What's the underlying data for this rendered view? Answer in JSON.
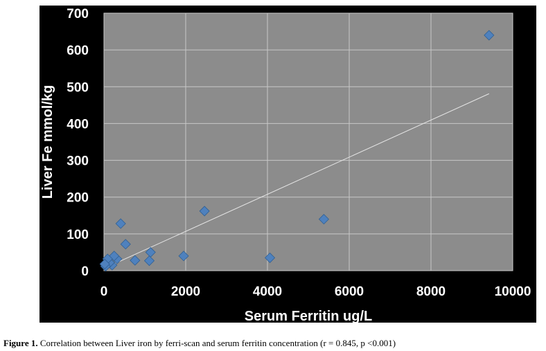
{
  "chart_data": {
    "type": "scatter",
    "title": "",
    "xlabel": "Serum Ferritin ug/L",
    "ylabel": "Liver Fe mmol/kg",
    "xlim": [
      0,
      10000
    ],
    "ylim": [
      0,
      700
    ],
    "x_ticks": [
      "0",
      "2000",
      "4000",
      "6000",
      "8000",
      "10000"
    ],
    "y_ticks": [
      "0",
      "100",
      "200",
      "300",
      "400",
      "500",
      "600",
      "700"
    ],
    "grid": true,
    "legend": "none",
    "marker": "diamond",
    "marker_color": "#4f81bd",
    "background": "#000000",
    "plot_area_color": "#8c8c8c",
    "points": [
      {
        "x": 9420,
        "y": 640
      },
      {
        "x": 5380,
        "y": 140
      },
      {
        "x": 4060,
        "y": 35
      },
      {
        "x": 2460,
        "y": 162
      },
      {
        "x": 1950,
        "y": 40
      },
      {
        "x": 1140,
        "y": 50
      },
      {
        "x": 1110,
        "y": 27
      },
      {
        "x": 760,
        "y": 28
      },
      {
        "x": 530,
        "y": 72
      },
      {
        "x": 410,
        "y": 128
      },
      {
        "x": 320,
        "y": 32
      },
      {
        "x": 250,
        "y": 40
      },
      {
        "x": 200,
        "y": 15
      },
      {
        "x": 140,
        "y": 22
      },
      {
        "x": 90,
        "y": 32
      },
      {
        "x": 40,
        "y": 12
      },
      {
        "x": 20,
        "y": 18
      }
    ],
    "trendline": {
      "x": [
        0,
        9420
      ],
      "y": [
        6,
        481
      ],
      "color": "#e6e6e6"
    }
  },
  "caption": {
    "label": "Figure 1.",
    "text": " Correlation between Liver iron by ferri-scan and serum ferritin concentration (r = 0.845, p <0.001)"
  }
}
